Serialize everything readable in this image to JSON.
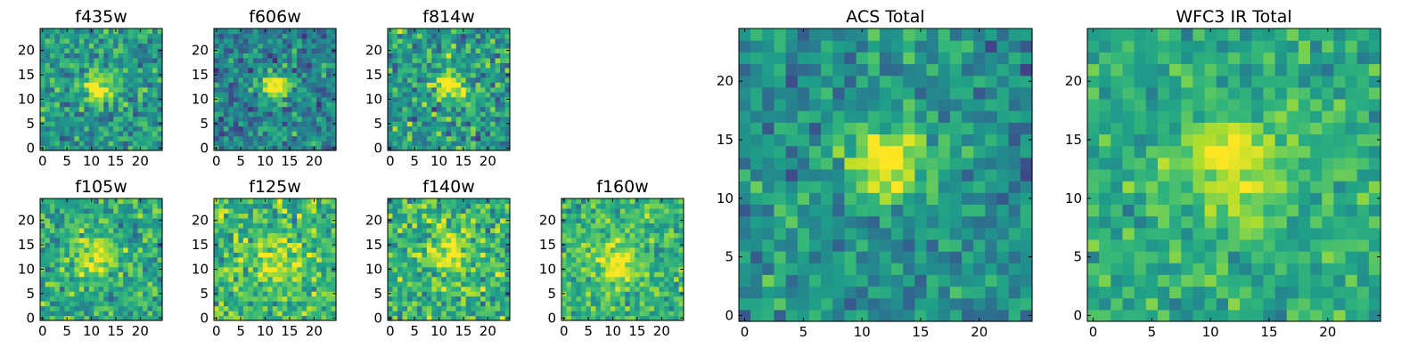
{
  "chart_data": [
    {
      "type": "heatmap",
      "title": "f435w",
      "xticks": [
        0,
        5,
        10,
        15,
        20
      ],
      "yticks": [
        0,
        5,
        10,
        15,
        20
      ],
      "xlim": [
        -0.5,
        24.5
      ],
      "ylim": [
        -0.5,
        24.5
      ],
      "grid": false,
      "colormap": "viridis",
      "source_center": [
        11.5,
        12.5
      ],
      "source_sigma": 2.0,
      "source_peak": 0.55,
      "background_level": 0.55,
      "noise": 0.13,
      "seed": 435
    },
    {
      "type": "heatmap",
      "title": "f606w",
      "xticks": [
        0,
        5,
        10,
        15,
        20
      ],
      "yticks": [
        0,
        5,
        10,
        15,
        20
      ],
      "xlim": [
        -0.5,
        24.5
      ],
      "ylim": [
        -0.5,
        24.5
      ],
      "grid": false,
      "colormap": "viridis",
      "source_center": [
        12,
        12.5
      ],
      "source_sigma": 2.0,
      "source_peak": 0.6,
      "background_level": 0.45,
      "noise": 0.13,
      "seed": 606
    },
    {
      "type": "heatmap",
      "title": "f814w",
      "xticks": [
        0,
        5,
        10,
        15,
        20
      ],
      "yticks": [
        0,
        5,
        10,
        15,
        20
      ],
      "xlim": [
        -0.5,
        24.5
      ],
      "ylim": [
        -0.5,
        24.5
      ],
      "grid": false,
      "colormap": "viridis",
      "source_center": [
        12,
        13
      ],
      "source_sigma": 2.2,
      "source_peak": 0.45,
      "background_level": 0.55,
      "noise": 0.15,
      "seed": 814
    },
    {
      "type": "heatmap",
      "title": "f105w",
      "xticks": [
        0,
        5,
        10,
        15,
        20
      ],
      "yticks": [
        0,
        5,
        10,
        15,
        20
      ],
      "xlim": [
        -0.5,
        24.5
      ],
      "ylim": [
        -0.5,
        24.5
      ],
      "grid": false,
      "colormap": "viridis",
      "source_center": [
        11,
        12
      ],
      "source_sigma": 3.0,
      "source_peak": 0.35,
      "background_level": 0.6,
      "noise": 0.12,
      "seed": 105
    },
    {
      "type": "heatmap",
      "title": "f125w",
      "xticks": [
        0,
        5,
        10,
        15,
        20
      ],
      "yticks": [
        0,
        5,
        10,
        15,
        20
      ],
      "xlim": [
        -0.5,
        24.5
      ],
      "ylim": [
        -0.5,
        24.5
      ],
      "grid": false,
      "colormap": "viridis",
      "source_center": [
        11,
        12
      ],
      "source_sigma": 3.0,
      "source_peak": 0.25,
      "background_level": 0.68,
      "noise": 0.14,
      "seed": 125
    },
    {
      "type": "heatmap",
      "title": "f140w",
      "xticks": [
        0,
        5,
        10,
        15,
        20
      ],
      "yticks": [
        0,
        5,
        10,
        15,
        20
      ],
      "xlim": [
        -0.5,
        24.5
      ],
      "ylim": [
        -0.5,
        24.5
      ],
      "grid": false,
      "colormap": "viridis",
      "source_center": [
        12,
        13
      ],
      "source_sigma": 3.2,
      "source_peak": 0.3,
      "background_level": 0.65,
      "noise": 0.14,
      "seed": 140
    },
    {
      "type": "heatmap",
      "title": "f160w",
      "xticks": [
        0,
        5,
        10,
        15,
        20
      ],
      "yticks": [
        0,
        5,
        10,
        15,
        20
      ],
      "xlim": [
        -0.5,
        24.5
      ],
      "ylim": [
        -0.5,
        24.5
      ],
      "grid": false,
      "colormap": "viridis",
      "source_center": [
        11,
        12
      ],
      "source_sigma": 3.0,
      "source_peak": 0.35,
      "background_level": 0.66,
      "noise": 0.11,
      "seed": 160
    },
    {
      "type": "heatmap",
      "title": "ACS Total",
      "xticks": [
        0,
        5,
        10,
        15,
        20
      ],
      "yticks": [
        0,
        5,
        10,
        15,
        20
      ],
      "xlim": [
        -0.5,
        24.5
      ],
      "ylim": [
        -0.5,
        24.5
      ],
      "grid": false,
      "colormap": "viridis",
      "source_center": [
        12,
        13
      ],
      "source_sigma": 2.1,
      "source_peak": 0.6,
      "background_level": 0.5,
      "noise": 0.11,
      "seed": 1001
    },
    {
      "type": "heatmap",
      "title": "WFC3 IR Total",
      "xticks": [
        0,
        5,
        10,
        15,
        20
      ],
      "yticks": [
        0,
        5,
        10,
        15,
        20
      ],
      "xlim": [
        -0.5,
        24.5
      ],
      "ylim": [
        -0.5,
        24.5
      ],
      "grid": false,
      "colormap": "viridis",
      "source_center": [
        12,
        12.5
      ],
      "source_sigma": 3.0,
      "source_peak": 0.38,
      "background_level": 0.62,
      "noise": 0.09,
      "seed": 2002
    }
  ]
}
